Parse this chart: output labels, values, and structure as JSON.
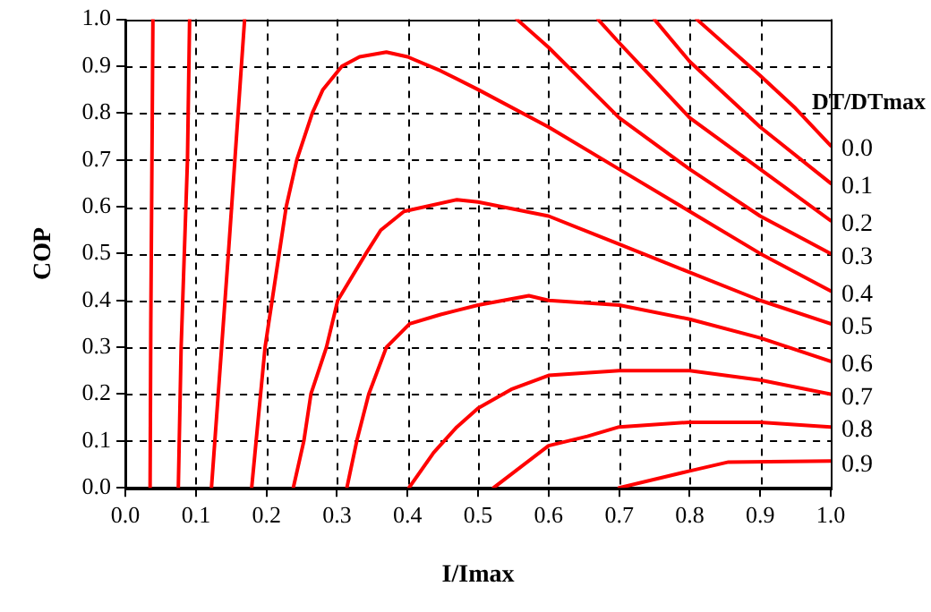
{
  "chart_data": {
    "type": "line",
    "xlabel": "I/Imax",
    "ylabel": "COP",
    "legend_title": "DT/DTmax",
    "legend": false,
    "grid": true,
    "marker": "none",
    "line_style": "solid",
    "xlim": [
      0,
      1
    ],
    "ylim": [
      0,
      1
    ],
    "xticks": [
      {
        "value": 0,
        "label": "0.0"
      },
      {
        "value": 0.1,
        "label": "0.1"
      },
      {
        "value": 0.2,
        "label": "0.2"
      },
      {
        "value": 0.3,
        "label": "0.3"
      },
      {
        "value": 0.4,
        "label": "0.4"
      },
      {
        "value": 0.5,
        "label": "0.5"
      },
      {
        "value": 0.6,
        "label": "0.6"
      },
      {
        "value": 0.7,
        "label": "0.7"
      },
      {
        "value": 0.8,
        "label": "0.8"
      },
      {
        "value": 0.9,
        "label": "0.9"
      },
      {
        "value": 1,
        "label": "1.0"
      }
    ],
    "yticks": [
      {
        "value": 0,
        "label": "0.0"
      },
      {
        "value": 0.1,
        "label": "0.1"
      },
      {
        "value": 0.2,
        "label": "0.2"
      },
      {
        "value": 0.3,
        "label": "0.3"
      },
      {
        "value": 0.4,
        "label": "0.4"
      },
      {
        "value": 0.5,
        "label": "0.5"
      },
      {
        "value": 0.6,
        "label": "0.6"
      },
      {
        "value": 0.7,
        "label": "0.7"
      },
      {
        "value": 0.8,
        "label": "0.8"
      },
      {
        "value": 0.9,
        "label": "0.9"
      },
      {
        "value": 1,
        "label": "1.0"
      }
    ],
    "series": [
      {
        "name": "0.0",
        "color": "#ff0000",
        "x": [
          0.81,
          0.9,
          0.95,
          1.0
        ],
        "values": [
          1.0,
          0.88,
          0.81,
          0.73
        ]
      },
      {
        "name": "0.1",
        "color": "#ff0000",
        "x": [
          0.035,
          0.036,
          0.039,
          null,
          0.75,
          0.8,
          0.9,
          1.0
        ],
        "values": [
          0,
          0.35,
          1.0,
          null,
          1.0,
          0.91,
          0.77,
          0.65
        ]
      },
      {
        "name": "0.2",
        "color": "#ff0000",
        "x": [
          0.075,
          0.079,
          0.088,
          0.091,
          null,
          0.67,
          0.7,
          0.8,
          0.9,
          1.0
        ],
        "values": [
          0,
          0.3,
          0.7,
          1.0,
          null,
          1.0,
          0.95,
          0.79,
          0.68,
          0.57
        ]
      },
      {
        "name": "0.3",
        "color": "#ff0000",
        "x": [
          0.122,
          0.146,
          0.169,
          null,
          0.555,
          0.6,
          0.7,
          0.8,
          0.9,
          1.0
        ],
        "values": [
          0,
          0.5,
          1.0,
          null,
          1.0,
          0.94,
          0.79,
          0.68,
          0.58,
          0.5
        ]
      },
      {
        "name": "0.4",
        "color": "#ff0000",
        "x": [
          0.179,
          0.198,
          0.218,
          0.228,
          0.243,
          0.265,
          0.28,
          0.307,
          0.332,
          0.37,
          0.4,
          0.447,
          0.5,
          0.6,
          0.7,
          0.8,
          0.9,
          1.0
        ],
        "values": [
          0,
          0.3,
          0.5,
          0.6,
          0.7,
          0.8,
          0.85,
          0.9,
          0.92,
          0.93,
          0.92,
          0.89,
          0.85,
          0.77,
          0.68,
          0.59,
          0.5,
          0.42
        ]
      },
      {
        "name": "0.5",
        "color": "#ff0000",
        "x": [
          0.238,
          0.253,
          0.263,
          0.285,
          0.301,
          0.341,
          0.362,
          0.395,
          0.47,
          0.5,
          0.6,
          0.7,
          0.8,
          0.9,
          1.0
        ],
        "values": [
          0,
          0.1,
          0.2,
          0.3,
          0.4,
          0.5,
          0.55,
          0.59,
          0.615,
          0.61,
          0.58,
          0.52,
          0.46,
          0.4,
          0.35
        ]
      },
      {
        "name": "0.6",
        "color": "#ff0000",
        "x": [
          0.314,
          0.328,
          0.345,
          0.37,
          0.403,
          0.447,
          0.5,
          0.572,
          0.6,
          0.7,
          0.8,
          0.9,
          1.0
        ],
        "values": [
          0,
          0.1,
          0.2,
          0.3,
          0.35,
          0.37,
          0.39,
          0.41,
          0.4,
          0.39,
          0.36,
          0.32,
          0.27
        ]
      },
      {
        "name": "0.7",
        "color": "#ff0000",
        "x": [
          0.402,
          0.437,
          0.47,
          0.5,
          0.547,
          0.6,
          0.7,
          0.8,
          0.9,
          1.0
        ],
        "values": [
          0,
          0.075,
          0.13,
          0.17,
          0.21,
          0.24,
          0.25,
          0.25,
          0.23,
          0.2
        ]
      },
      {
        "name": "0.8",
        "color": "#ff0000",
        "x": [
          0.522,
          0.6,
          0.655,
          0.7,
          0.8,
          0.9,
          1.0
        ],
        "values": [
          0,
          0.09,
          0.11,
          0.13,
          0.14,
          0.14,
          0.13
        ]
      },
      {
        "name": "0.9",
        "color": "#ff0000",
        "x": [
          0.7,
          0.8,
          0.855,
          1.0
        ],
        "values": [
          0,
          0.036,
          0.055,
          0.057
        ]
      }
    ]
  }
}
